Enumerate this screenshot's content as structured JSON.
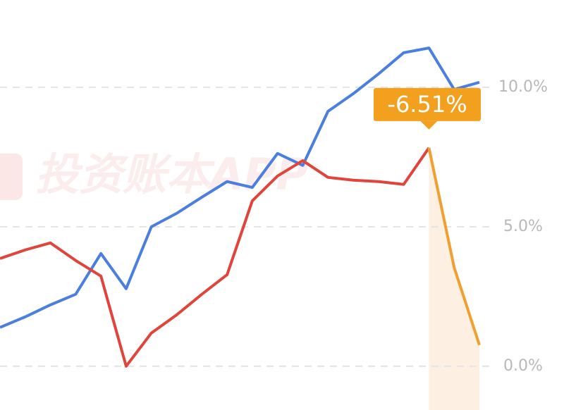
{
  "chart_data": {
    "type": "line",
    "watermark": "投资账本APP",
    "annotation": "-6.51%",
    "categories": [
      null,
      null,
      null,
      null,
      null,
      null,
      null,
      null,
      null,
      null,
      null,
      null,
      null,
      null,
      null,
      null,
      null,
      null,
      null,
      null
    ],
    "series": [
      {
        "color": "#4a7fe0",
        "values": [
          1.39,
          1.77,
          2.2,
          2.58,
          4.04,
          2.78,
          5.0,
          5.48,
          6.06,
          6.62,
          6.41,
          7.63,
          7.2,
          9.14,
          9.77,
          10.48,
          11.24,
          11.41,
          9.92,
          10.18
        ]
      },
      {
        "color": "#e0443a",
        "values": [
          3.86,
          4.17,
          4.42,
          3.79,
          3.23,
          0.0,
          1.19,
          1.84,
          2.58,
          3.28,
          5.93,
          6.82,
          7.37,
          6.77,
          6.67,
          6.62,
          6.52,
          7.83,
          null,
          null
        ]
      },
      {
        "color": "#f0a030",
        "values": [
          null,
          null,
          null,
          null,
          null,
          null,
          null,
          null,
          null,
          null,
          null,
          null,
          null,
          null,
          null,
          null,
          null,
          7.83,
          3.54,
          0.76
        ]
      }
    ],
    "ylim": [
      -1.57,
      13.13
    ],
    "yticks": [
      {
        "value": 0,
        "label": "0.0%"
      },
      {
        "value": 5,
        "label": "5.0%"
      },
      {
        "value": 10,
        "label": "10.0%"
      }
    ],
    "grid": true
  }
}
